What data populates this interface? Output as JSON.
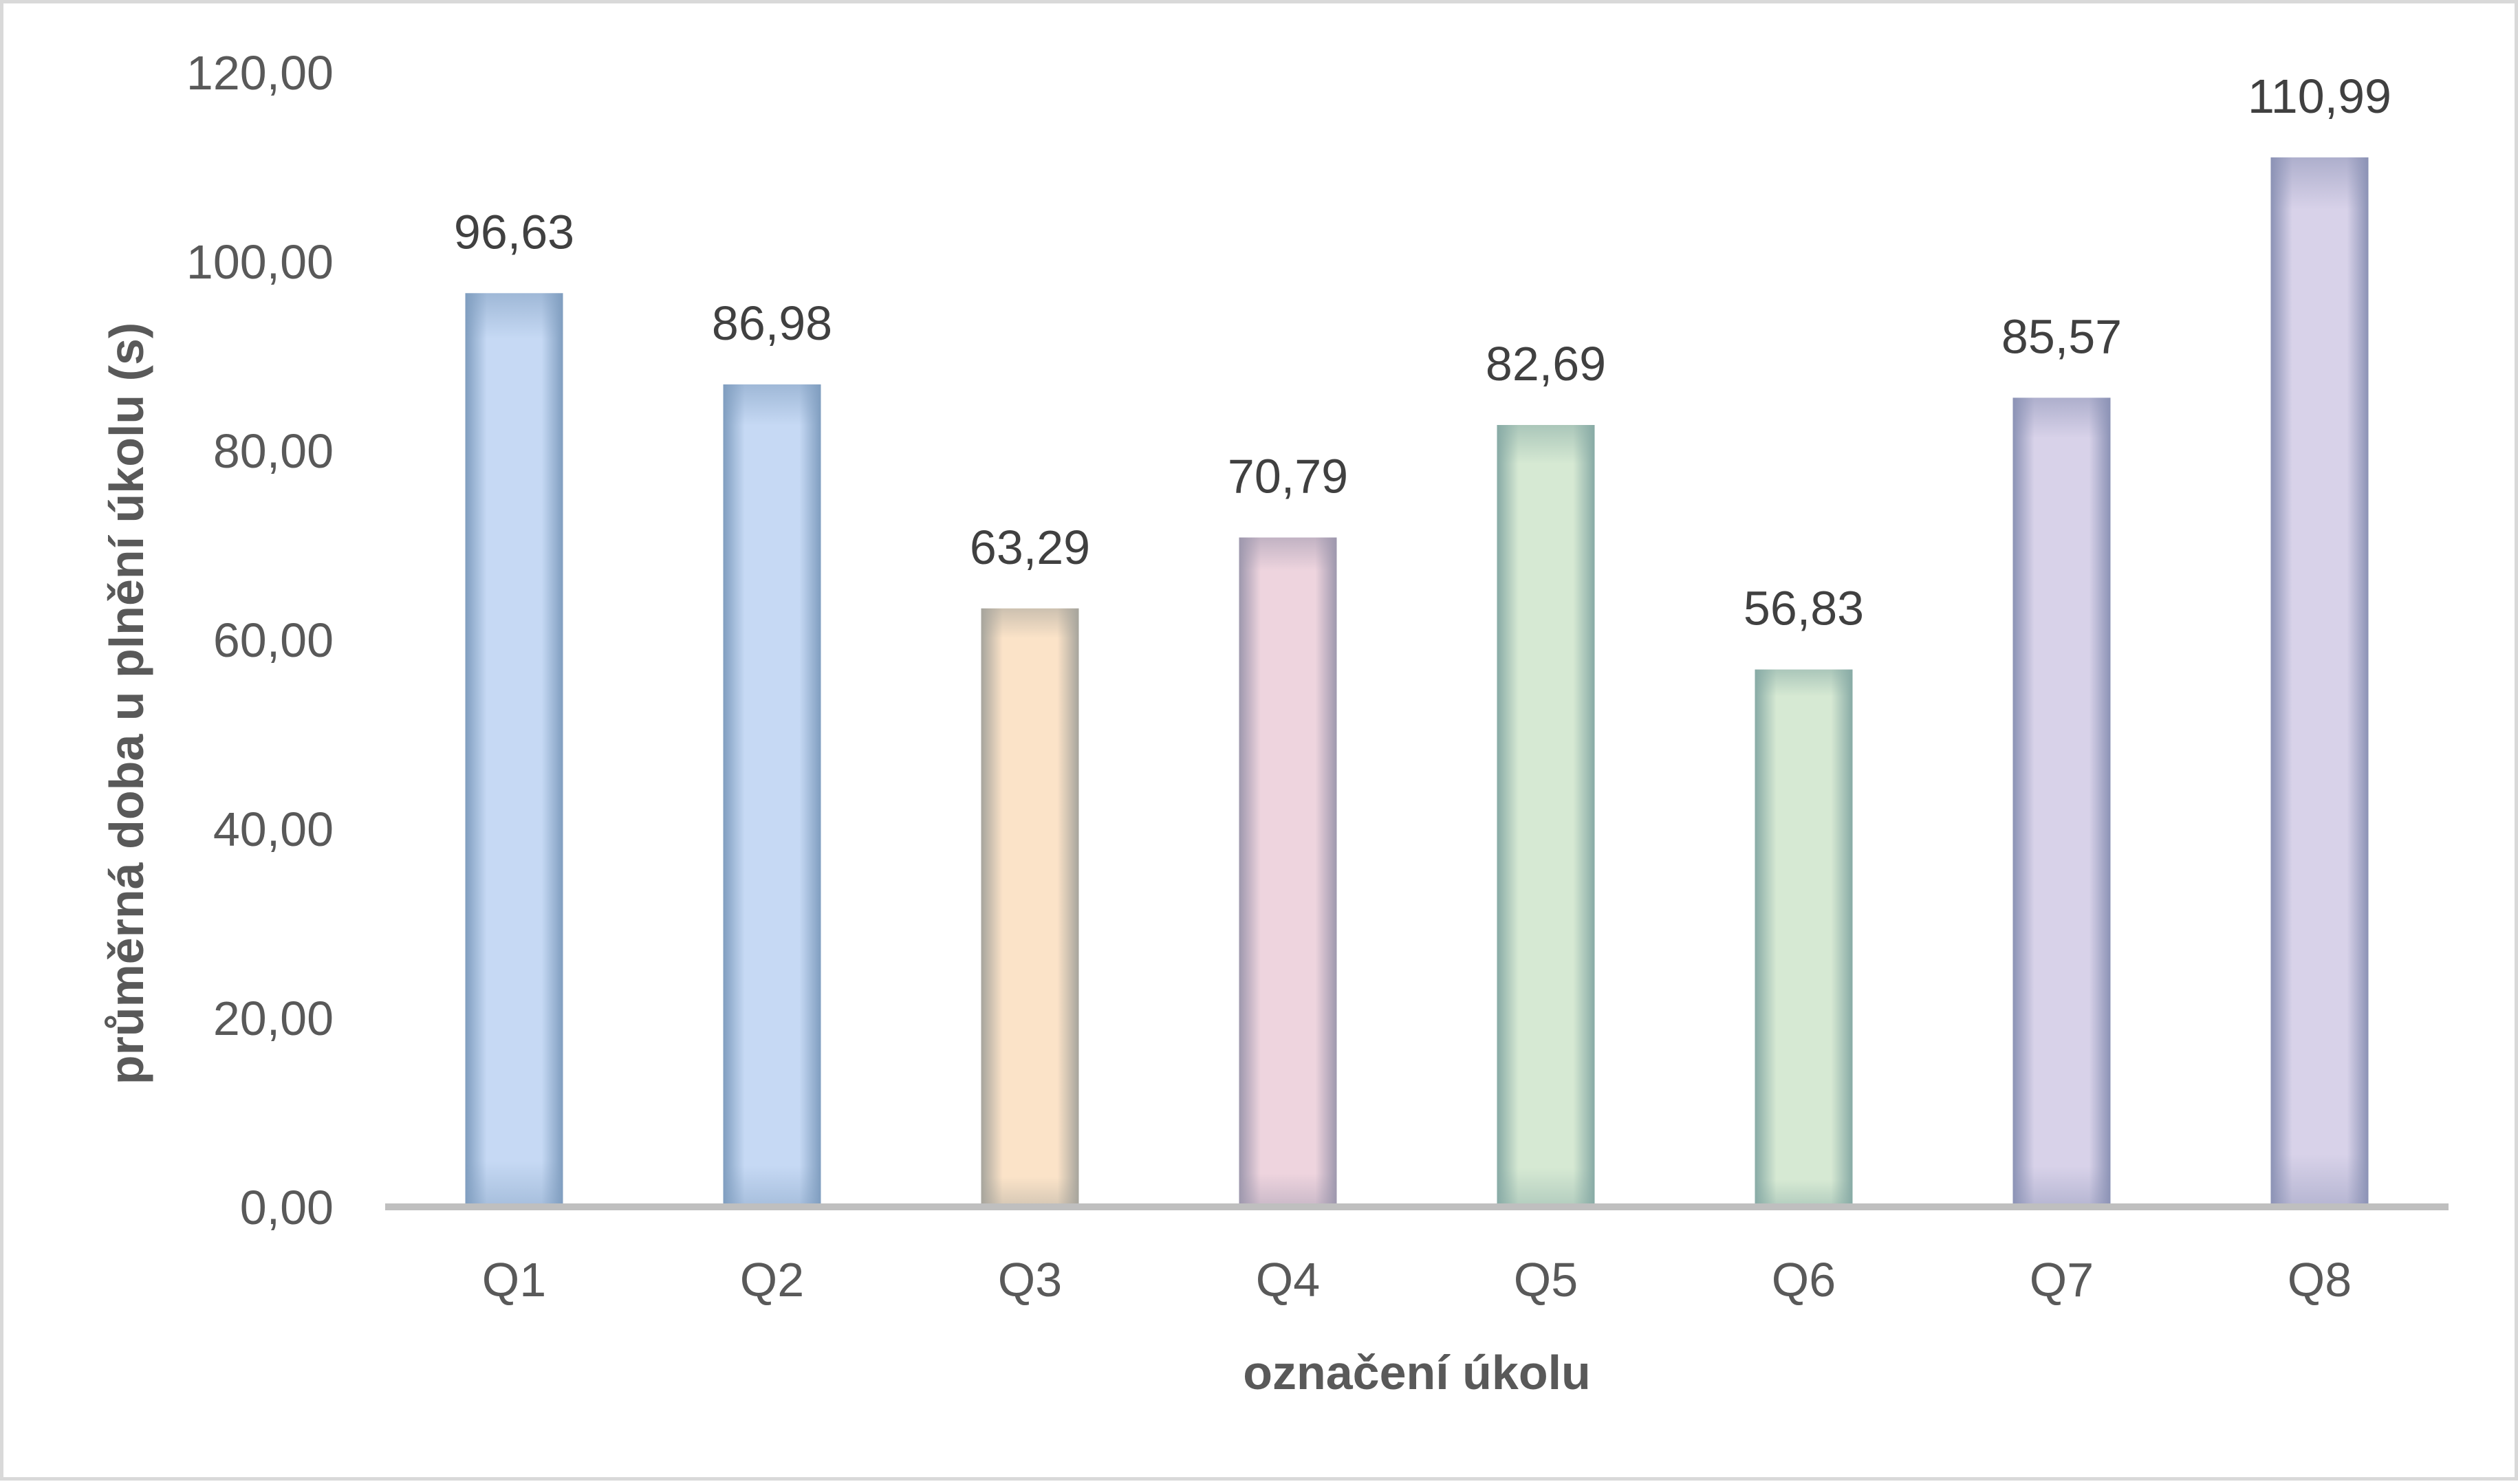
{
  "chart_data": {
    "type": "bar",
    "title": "",
    "xlabel": "označení úkolu",
    "ylabel": "průměrná doba u plnění úkolu (s)",
    "categories": [
      "Q1",
      "Q2",
      "Q3",
      "Q4",
      "Q5",
      "Q6",
      "Q7",
      "Q8"
    ],
    "values": [
      96.63,
      86.98,
      63.29,
      70.79,
      82.69,
      56.83,
      85.57,
      110.99
    ],
    "data_labels": [
      "96,63",
      "86,98",
      "63,29",
      "70,79",
      "82,69",
      "56,83",
      "85,57",
      "110,99"
    ],
    "ylim": [
      0,
      120
    ],
    "yticks": [
      0,
      20,
      40,
      60,
      80,
      100,
      120
    ],
    "ytick_labels": [
      "0,00",
      "20,00",
      "40,00",
      "60,00",
      "80,00",
      "100,00",
      "120,00"
    ],
    "grid": false,
    "legend": "none",
    "bar_colors": [
      "#c6d9f4",
      "#c6d9f4",
      "#fbe3c8",
      "#eed4de",
      "#d6e9d3",
      "#d6e9d3",
      "#d8d2e9",
      "#d8d2e9"
    ],
    "bar_edge_colors": [
      "#7f9dbf",
      "#7f9dbf",
      "#a6a49c",
      "#9d97ad",
      "#87aaa5",
      "#87aaa5",
      "#8b92b5",
      "#8b92b5"
    ],
    "axis_color": "#bfbfbf"
  }
}
